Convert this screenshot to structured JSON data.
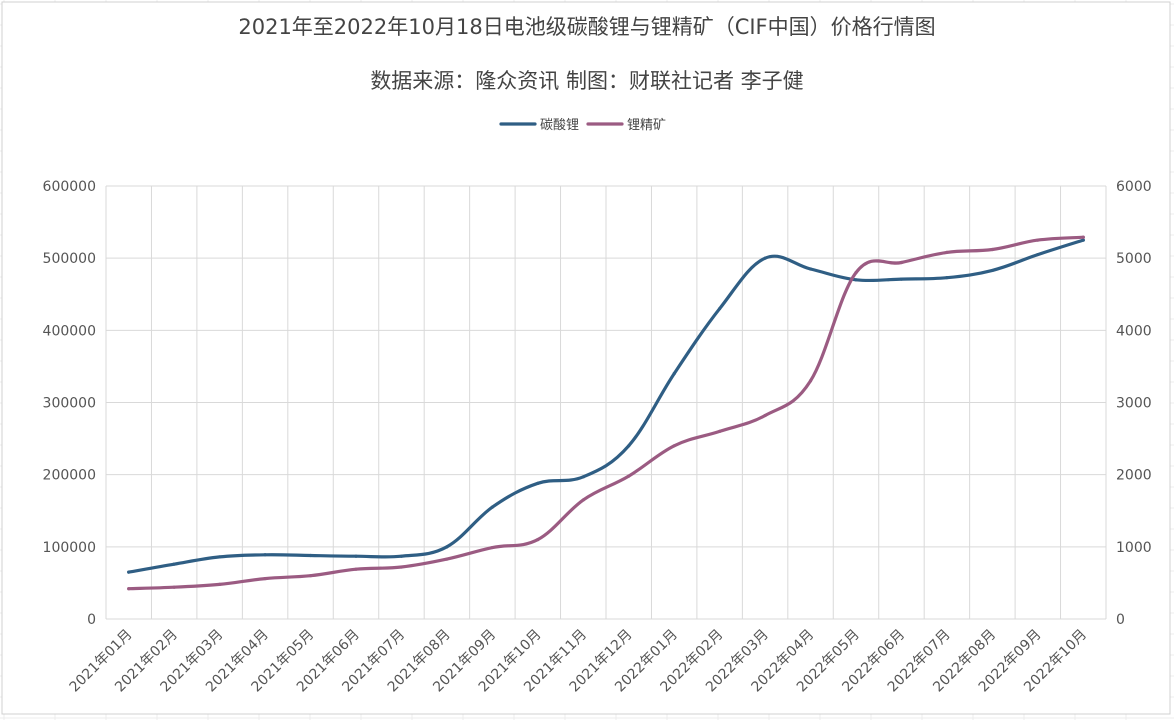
{
  "chart_data": {
    "type": "line",
    "title": "2021年至2022年10月18日电池级碳酸锂与锂精矿（CIF中国）价格行情图",
    "subtitle": "数据来源：隆众资讯   制图：财联社记者 李子健",
    "categories": [
      "2021年01月",
      "2021年02月",
      "2021年03月",
      "2021年04月",
      "2021年05月",
      "2021年06月",
      "2021年07月",
      "2021年08月",
      "2021年09月",
      "2021年10月",
      "2021年11月",
      "2021年12月",
      "2022年01月",
      "2022年02月",
      "2022年03月",
      "2022年04月",
      "2022年05月",
      "2022年06月",
      "2022年07月",
      "2022年08月",
      "2022年09月",
      "2022年10月"
    ],
    "left_axis": {
      "ylim": [
        0,
        600000
      ],
      "ticks": [
        "0",
        "100000",
        "200000",
        "300000",
        "400000",
        "500000",
        "600000"
      ]
    },
    "right_axis": {
      "ylim": [
        0,
        6000
      ],
      "ticks": [
        "0",
        "1000",
        "2000",
        "3000",
        "4000",
        "5000",
        "6000"
      ]
    },
    "series": [
      {
        "name": "碳酸锂",
        "axis": "left",
        "color": "#2f5e84",
        "values": [
          65000,
          76000,
          86000,
          89000,
          88000,
          87000,
          87000,
          100000,
          155000,
          188000,
          197000,
          240000,
          340000,
          430000,
          500000,
          485000,
          470000,
          471000,
          473000,
          483000,
          505000,
          525000
        ]
      },
      {
        "name": "锂精矿",
        "axis": "right",
        "color": "#9b5b82",
        "values": [
          420,
          440,
          480,
          560,
          600,
          690,
          720,
          830,
          990,
          1100,
          1650,
          1980,
          2400,
          2600,
          2820,
          3300,
          4800,
          4940,
          5080,
          5120,
          5250,
          5290
        ]
      }
    ],
    "legend_position": "top-center",
    "grid": true
  }
}
